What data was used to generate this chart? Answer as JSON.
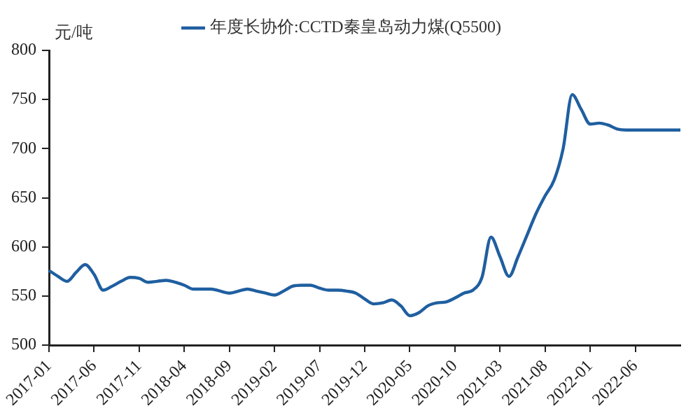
{
  "chart_data": {
    "type": "line",
    "ylabel": "元/吨",
    "categories": [
      "2017-01",
      null,
      null,
      null,
      null,
      "2017-06",
      null,
      null,
      null,
      null,
      "2017-11",
      null,
      null,
      null,
      null,
      "2018-04",
      null,
      null,
      null,
      null,
      "2018-09",
      null,
      null,
      null,
      null,
      "2019-02",
      null,
      null,
      null,
      null,
      "2019-07",
      null,
      null,
      null,
      null,
      "2019-12",
      null,
      null,
      null,
      null,
      "2020-05",
      null,
      null,
      null,
      null,
      "2020-10",
      null,
      null,
      null,
      null,
      "2021-03",
      null,
      null,
      null,
      null,
      "2021-08",
      null,
      null,
      null,
      null,
      "2022-01",
      null,
      null,
      null,
      null,
      "2022-06",
      null,
      null,
      null,
      null,
      null
    ],
    "series": [
      {
        "name": "年度长协价:CCTD秦皇岛动力煤(Q5500)",
        "color": "#1f5fa0",
        "values": [
          576,
          570,
          565,
          574,
          582,
          572,
          556,
          560,
          565,
          569,
          568,
          564,
          565,
          566,
          564,
          561,
          557,
          557,
          557,
          555,
          553,
          555,
          557,
          555,
          553,
          551,
          555,
          560,
          561,
          561,
          558,
          556,
          556,
          555,
          553,
          547,
          542,
          543,
          546,
          540,
          530,
          533,
          540,
          543,
          544,
          548,
          553,
          556,
          569,
          610,
          590,
          570,
          590,
          612,
          634,
          652,
          668,
          700,
          755,
          740,
          725,
          726,
          724,
          720,
          719,
          719,
          719,
          719,
          719,
          719,
          719
        ]
      }
    ],
    "ylim": [
      500,
      800
    ],
    "yticks": [
      500,
      550,
      600,
      650,
      700,
      750,
      800
    ],
    "grid": false,
    "legend": "top",
    "marker": "none",
    "line_style": "solid"
  }
}
